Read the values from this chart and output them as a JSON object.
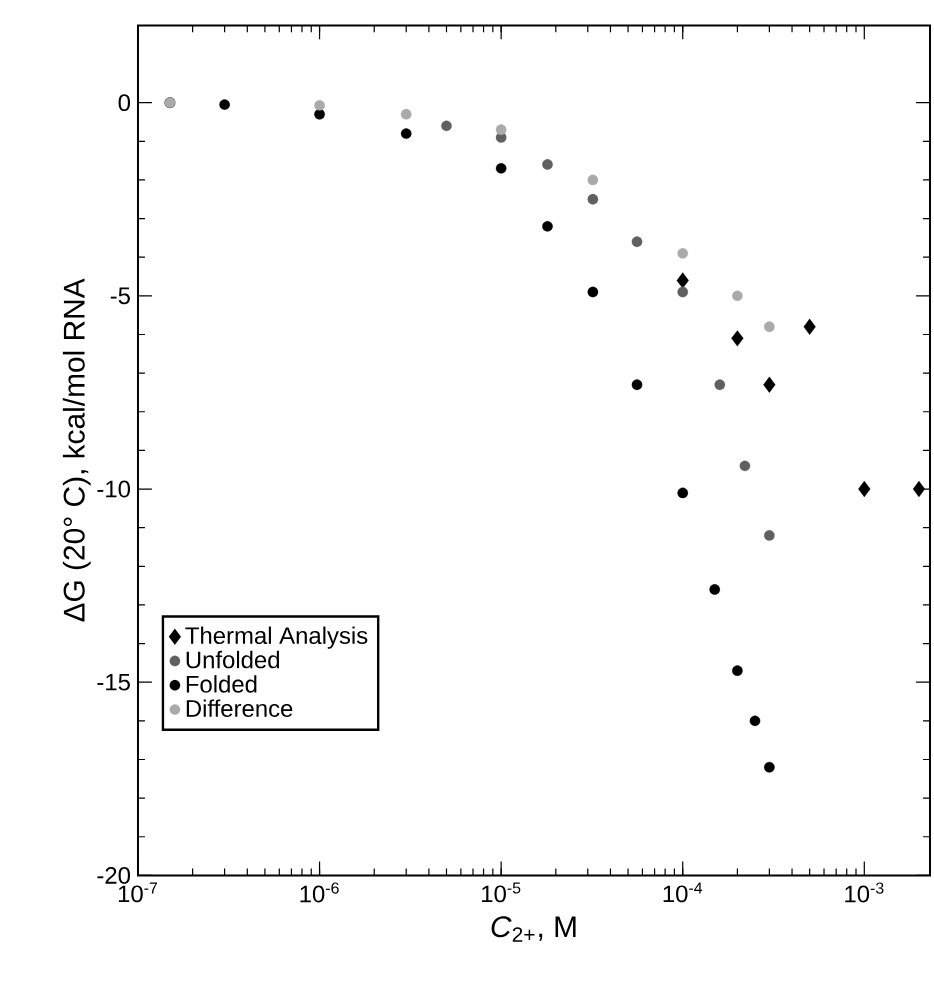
{
  "chart_data": {
    "type": "scatter",
    "xlabel": "*C*$_{2+}$, M",
    "ylabel": "ΔG (20° C), kcal/mol RNA",
    "log": "x",
    "xlim": [
      1e-07,
      0.0023
    ],
    "ylim": [
      -20,
      2
    ],
    "xticks": [
      {
        "value": 1e-07,
        "label": "10$^{-7}$"
      },
      {
        "value": 1e-06,
        "label": "10$^{-6}$"
      },
      {
        "value": 1e-05,
        "label": "10$^{-5}$"
      },
      {
        "value": 0.0001,
        "label": "10$^{-4}$"
      },
      {
        "value": 0.001,
        "label": "10$^{-3}$"
      }
    ],
    "yticks": [
      -20,
      -15,
      -10,
      -5,
      0
    ],
    "legend": "bottom left",
    "grid": false,
    "series": [
      {
        "name": "Thermal Analysis",
        "color": "#000000",
        "marker": "diamond",
        "x": [
          0.0001,
          0.0002,
          0.0003,
          0.0005,
          0.001,
          0.002
        ],
        "values": [
          -4.6,
          -6.1,
          -7.3,
          -5.8,
          -10.0,
          -10.0
        ]
      },
      {
        "name": "Unfolded",
        "color": "#606060",
        "marker": "circle",
        "x": [
          1.5e-07,
          5e-06,
          1e-05,
          1.8e-05,
          3.2e-05,
          5.6e-05,
          0.0001,
          0.00016,
          0.00022,
          0.0003
        ],
        "values": [
          0,
          -0.6,
          -0.9,
          -1.6,
          -2.5,
          -3.6,
          -4.9,
          -7.3,
          -9.4,
          -11.2
        ]
      },
      {
        "name": "Folded",
        "color": "#000000",
        "marker": "circle",
        "x": [
          1.5e-07,
          3e-07,
          1e-06,
          3e-06,
          1e-05,
          1.8e-05,
          3.2e-05,
          5.6e-05,
          0.0001,
          0.00015,
          0.0002,
          0.00025,
          0.0003
        ],
        "values": [
          0,
          -0.05,
          -0.3,
          -0.8,
          -1.7,
          -3.2,
          -4.9,
          -7.3,
          -10.1,
          -12.6,
          -14.7,
          -16.0,
          -17.2
        ]
      },
      {
        "name": "Difference",
        "color": "#aaaaaa",
        "marker": "circle",
        "x": [
          1.5e-07,
          1e-06,
          3e-06,
          1e-05,
          3.2e-05,
          0.0001,
          0.0002,
          0.0003
        ],
        "values": [
          0,
          -0.07,
          -0.3,
          -0.7,
          -2.0,
          -3.9,
          -5.0,
          -5.8
        ]
      }
    ]
  }
}
